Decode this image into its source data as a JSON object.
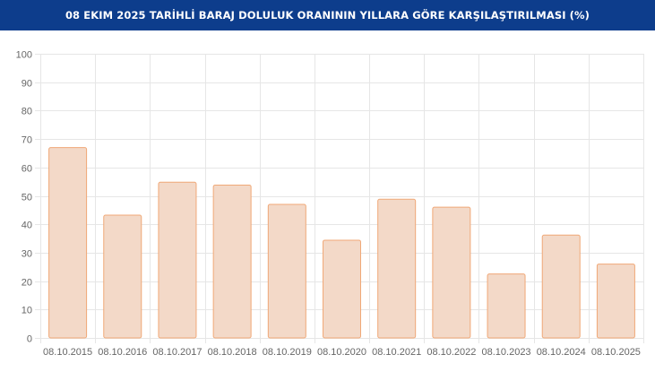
{
  "header": {
    "title": "08 EKIM 2025 TARİHLİ BARAJ DOLULUK ORANININ YILLARA GÖRE KARŞILAŞTIRILMASI (%)"
  },
  "chart_data": {
    "type": "bar",
    "title": "08 EKIM 2025 TARİHLİ BARAJ DOLULUK ORANININ YILLARA GÖRE KARŞILAŞTIRILMASI (%)",
    "categories": [
      "08.10.2015",
      "08.10.2016",
      "08.10.2017",
      "08.10.2018",
      "08.10.2019",
      "08.10.2020",
      "08.10.2021",
      "08.10.2022",
      "08.10.2023",
      "08.10.2024",
      "08.10.2025"
    ],
    "values": [
      67,
      43.2,
      54.8,
      53.8,
      47,
      34.4,
      48.8,
      46,
      22.5,
      36.2,
      26
    ],
    "y_ticks": [
      "0",
      "10",
      "20",
      "30",
      "40",
      "50",
      "60",
      "70",
      "80",
      "90",
      "100"
    ],
    "ylim": [
      0,
      100
    ],
    "grid": true,
    "colors": {
      "header_bg": "#0d3d8c",
      "bar_fill": "#f3d9c8",
      "bar_stroke": "#f0a877",
      "grid": "#e6e6e6",
      "tick_text": "#666666"
    }
  }
}
